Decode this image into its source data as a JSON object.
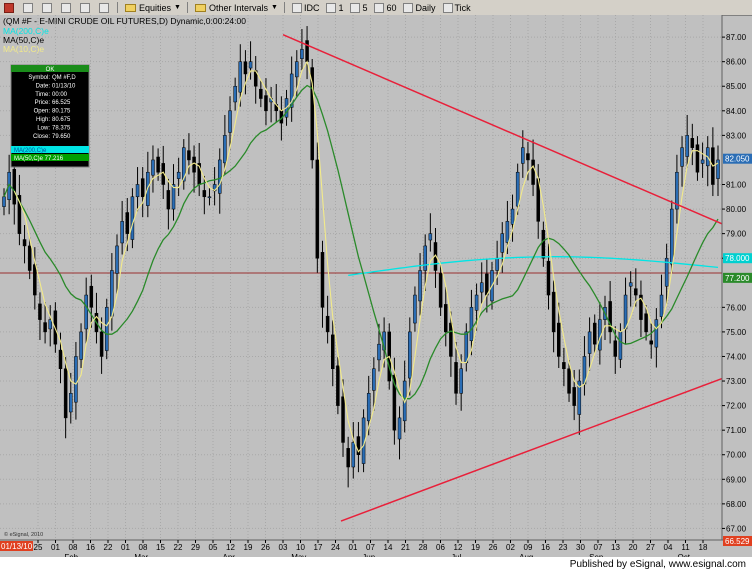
{
  "toolbar": {
    "equities_label": "Equities",
    "other_intervals_label": "Other Intervals",
    "intervals": [
      "IDC",
      "1",
      "5",
      "60",
      "Daily",
      "Tick"
    ]
  },
  "chart_header": {
    "title": "(QM #F - E-MINI CRUDE OIL FUTURES,D) Dynamic,0:00:24:00",
    "ma200_label": "MA(200,C)e",
    "ma50_label": "MA(50,C)e",
    "ma10_label": "MA(10,C)e"
  },
  "data_window": {
    "header": "OK",
    "rows": [
      {
        "label": "Symbol:",
        "value": "QM #F,D"
      },
      {
        "label": "Date:",
        "value": "01/13/10"
      },
      {
        "label": "Time:",
        "value": "00:00"
      },
      {
        "label": "Price:",
        "value": "66.525"
      },
      {
        "label": "Open:",
        "value": "80.175"
      },
      {
        "label": "High:",
        "value": "80.675"
      },
      {
        "label": "Low:",
        "value": "78.375"
      },
      {
        "label": "Close:",
        "value": "79.650"
      }
    ],
    "ma200_row": "MA(200,C)e",
    "ma50_row": "MA(50,C)e 77.216"
  },
  "copyright": "© eSignal, 2010",
  "date_marker": "01/13/10",
  "footer": {
    "publisher": "Published by eSignal, www.esignal.com"
  },
  "chart_data": {
    "type": "candlestick",
    "ylim": [
      66.529,
      87.9
    ],
    "y_ticks": [
      67.0,
      68.0,
      69.0,
      70.0,
      71.0,
      72.0,
      73.0,
      74.0,
      75.0,
      76.0,
      78.0,
      79.0,
      80.0,
      81.0,
      83.0,
      84.0,
      85.0,
      86.0,
      87.0
    ],
    "x_tick_labels": [
      "25",
      "01",
      "08",
      "16",
      "22",
      "01",
      "08",
      "15",
      "22",
      "29",
      "05",
      "12",
      "19",
      "26",
      "03",
      "10",
      "17",
      "24",
      "01",
      "07",
      "14",
      "21",
      "28",
      "06",
      "12",
      "19",
      "26",
      "02",
      "09",
      "16",
      "23",
      "30",
      "07",
      "13",
      "20",
      "27",
      "04",
      "11",
      "18"
    ],
    "month_labels": [
      "Feb",
      "Mar",
      "Apr",
      "May",
      "Jun",
      "Jul",
      "Aug",
      "Sep",
      "Oct"
    ],
    "price_labels": {
      "last_price": "82.050",
      "ma200": "78.000",
      "ma50": "77.200",
      "bottom": "66.529"
    },
    "horizontal_line": 77.4,
    "approx_closes": [
      80.5,
      81.5,
      80.2,
      79.0,
      78.5,
      77.5,
      76.5,
      75.5,
      75.0,
      75.5,
      74.5,
      73.5,
      71.5,
      72.5,
      74.0,
      75.0,
      76.5,
      76.0,
      75.0,
      74.0,
      76.0,
      77.5,
      78.5,
      79.5,
      79.0,
      80.5,
      81.0,
      80.5,
      81.5,
      82.0,
      81.5,
      81.0,
      80.0,
      81.0,
      81.5,
      82.5,
      82.0,
      81.5,
      81.0,
      80.5,
      80.5,
      81.0,
      82.0,
      83.0,
      84.0,
      85.0,
      86.0,
      85.5,
      86.0,
      85.0,
      84.5,
      84.0,
      84.5,
      84.0,
      83.5,
      84.5,
      85.5,
      86.0,
      86.5,
      86.0,
      82.0,
      78.0,
      76.0,
      75.0,
      73.5,
      72.0,
      70.5,
      69.5,
      70.5,
      70.0,
      71.5,
      72.5,
      73.5,
      74.5,
      75.0,
      73.0,
      71.0,
      71.5,
      73.0,
      75.0,
      76.5,
      77.5,
      78.5,
      79.0,
      77.5,
      76.0,
      75.0,
      74.0,
      72.5,
      73.5,
      75.0,
      76.0,
      76.5,
      77.0,
      76.5,
      77.5,
      78.0,
      79.0,
      79.5,
      80.0,
      81.5,
      82.5,
      82.0,
      81.0,
      79.5,
      78.0,
      76.5,
      75.0,
      74.0,
      73.5,
      72.5,
      72.0,
      73.0,
      74.0,
      75.0,
      74.5,
      75.5,
      76.0,
      75.0,
      74.0,
      75.0,
      76.5,
      77.0,
      76.5,
      75.5,
      75.0,
      74.5,
      75.5,
      76.5,
      78.0,
      80.0,
      81.5,
      82.5,
      83.0,
      82.5,
      81.5,
      82.0,
      82.5,
      81.0,
      82.0
    ]
  },
  "colors": {
    "background": "#c0c0c0",
    "ma200": "#00e5e5",
    "ma50": "#2a8a2a",
    "ma10": "#f2ea8a",
    "trendline": "#e8203a",
    "candle": "#000000",
    "candle_up": "#2a6db5",
    "price_label_bg": "#2a6db5",
    "ma200_label_bg": "#00d0d0",
    "ma50_label_bg": "#2a8a2a",
    "bottom_label_bg": "#e04020"
  }
}
